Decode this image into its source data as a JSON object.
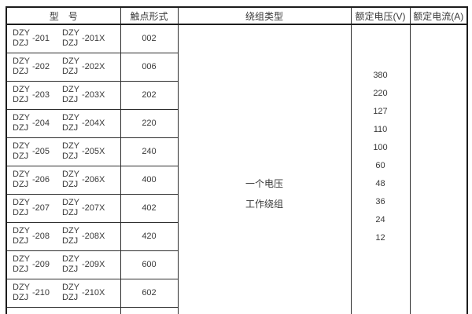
{
  "table": {
    "headers": {
      "model": "型　号",
      "contact_form": "触点形式",
      "winding_type": "绕组类型",
      "rated_voltage": "额定电压(V)",
      "rated_current": "额定电流(A)"
    },
    "rows": [
      {
        "series_top": "DZY",
        "series_bottom": "DZJ",
        "base_suffix": "-201",
        "variant_suffix": "-201X",
        "contact_form": "002"
      },
      {
        "series_top": "DZY",
        "series_bottom": "DZJ",
        "base_suffix": "-202",
        "variant_suffix": "-202X",
        "contact_form": "006"
      },
      {
        "series_top": "DZY",
        "series_bottom": "DZJ",
        "base_suffix": "-203",
        "variant_suffix": "-203X",
        "contact_form": "202"
      },
      {
        "series_top": "DZY",
        "series_bottom": "DZJ",
        "base_suffix": "-204",
        "variant_suffix": "-204X",
        "contact_form": "220"
      },
      {
        "series_top": "DZY",
        "series_bottom": "DZJ",
        "base_suffix": "-205",
        "variant_suffix": "-205X",
        "contact_form": "240"
      },
      {
        "series_top": "DZY",
        "series_bottom": "DZJ",
        "base_suffix": "-206",
        "variant_suffix": "-206X",
        "contact_form": "400"
      },
      {
        "series_top": "DZY",
        "series_bottom": "DZJ",
        "base_suffix": "-207",
        "variant_suffix": "-207X",
        "contact_form": "402"
      },
      {
        "series_top": "DZY",
        "series_bottom": "DZJ",
        "base_suffix": "-208",
        "variant_suffix": "-208X",
        "contact_form": "420"
      },
      {
        "series_top": "DZY",
        "series_bottom": "DZJ",
        "base_suffix": "-209",
        "variant_suffix": "-209X",
        "contact_form": "600"
      },
      {
        "series_top": "DZY",
        "series_bottom": "DZJ",
        "base_suffix": "-210",
        "variant_suffix": "-210X",
        "contact_form": "602"
      }
    ],
    "winding_type_lines": [
      "一个电压",
      "工作绕组"
    ],
    "rated_voltages": [
      "380",
      "220",
      "127",
      "110",
      "100",
      "60",
      "48",
      "36",
      "24",
      "12"
    ],
    "rated_current_value": "",
    "colors": {
      "border_inner": "#2e2e2e",
      "border_outer": "#1c1c1c",
      "text": "#383838",
      "background": "#ffffff"
    }
  }
}
